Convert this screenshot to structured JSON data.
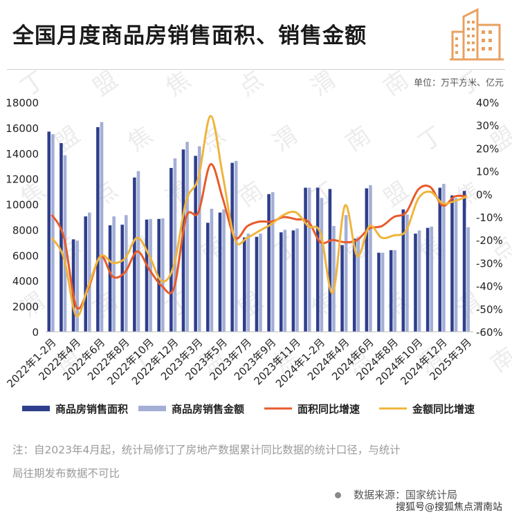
{
  "header": {
    "title": "全国月度商品房销售面积、销售金额",
    "units": "单位：万平方米、亿元"
  },
  "note": {
    "line1": "注：自2023年4月起，统计局修订了房地产数据累计同比数据的统计口径，与统计",
    "line2": "局往期发布数据不可比"
  },
  "source": {
    "text": "数据来源：国家统计局"
  },
  "watermark": {
    "text": "搜狐号@搜狐焦点渭南站"
  },
  "colors": {
    "area_bar": "#2f3f8c",
    "amount_bar": "#a4afd6",
    "area_line": "#e85a2a",
    "amount_line": "#f0b43c",
    "logo": "#e8a060"
  },
  "chart_data": {
    "type": "bar",
    "x_labels": [
      "2022年1-2月",
      "2022年4月",
      "2022年6月",
      "2022年8月",
      "2022年10月",
      "2022年12月",
      "2023年3月",
      "2023年5月",
      "2023年7月",
      "2023年9月",
      "2023年11月",
      "2024年1-2月",
      "2024年4月",
      "2024年6月",
      "2024年8月",
      "2024年10月",
      "2024年12月",
      "2025年3月"
    ],
    "left_axis": {
      "min": 0,
      "max": 18000,
      "ticks": [
        0,
        2000,
        4000,
        6000,
        8000,
        10000,
        12000,
        14000,
        16000,
        18000
      ]
    },
    "right_axis": {
      "min": -60,
      "max": 40,
      "ticks": [
        "40%",
        "30%",
        "20%",
        "10%",
        "0%",
        "-10%",
        "-20%",
        "-30%",
        "-40%",
        "-50%",
        "-60%"
      ]
    },
    "series": [
      {
        "name": "商品房销售面积",
        "type": "bar",
        "axis": "left",
        "values": [
          15700,
          14800,
          7250,
          9050,
          16050,
          8350,
          8400,
          12100,
          8800,
          8850,
          12850,
          14300,
          13800,
          8550,
          9350,
          13250,
          7400,
          7450,
          10800,
          7800,
          7950,
          11300,
          11300,
          11200,
          6800,
          7300,
          11250,
          6200,
          6400,
          9600,
          7700,
          8150,
          11300,
          10700,
          11050
        ]
      },
      {
        "name": "商品房销售金额",
        "type": "bar",
        "axis": "left",
        "values": [
          15500,
          13850,
          7150,
          9350,
          16450,
          9050,
          9150,
          12600,
          8850,
          8900,
          13600,
          14900,
          14550,
          9650,
          9600,
          13400,
          7700,
          7700,
          10950,
          8000,
          8100,
          11300,
          10500,
          8300,
          9150,
          7400,
          11500,
          6200,
          6400,
          9200,
          7950,
          8250,
          11600,
          10500,
          8200
        ]
      },
      {
        "name": "面积同比增速",
        "type": "line",
        "axis": "right",
        "values": [
          -9,
          -19,
          -49,
          -41,
          -27,
          -36,
          -34,
          -25,
          -33,
          -40,
          -41,
          -10,
          -8,
          13,
          -2,
          -19,
          -14,
          -12,
          -12,
          -10,
          -11,
          -12,
          -21,
          -20,
          -21,
          -20,
          -15,
          -14,
          -10,
          -8,
          2,
          3,
          -5,
          -1,
          -1
        ]
      },
      {
        "name": "金额同比增速",
        "type": "line",
        "axis": "right",
        "values": [
          -19,
          -28,
          -53,
          -40,
          -27,
          -30,
          -28,
          -19,
          -27,
          -38,
          -31,
          -3,
          7,
          34,
          8,
          -20,
          -19,
          -16,
          -13,
          -9,
          -8,
          -14,
          -17,
          -43,
          -5,
          -27,
          -14,
          -19,
          -18,
          -16,
          -2,
          1,
          -4,
          -3,
          -1
        ]
      }
    ]
  }
}
